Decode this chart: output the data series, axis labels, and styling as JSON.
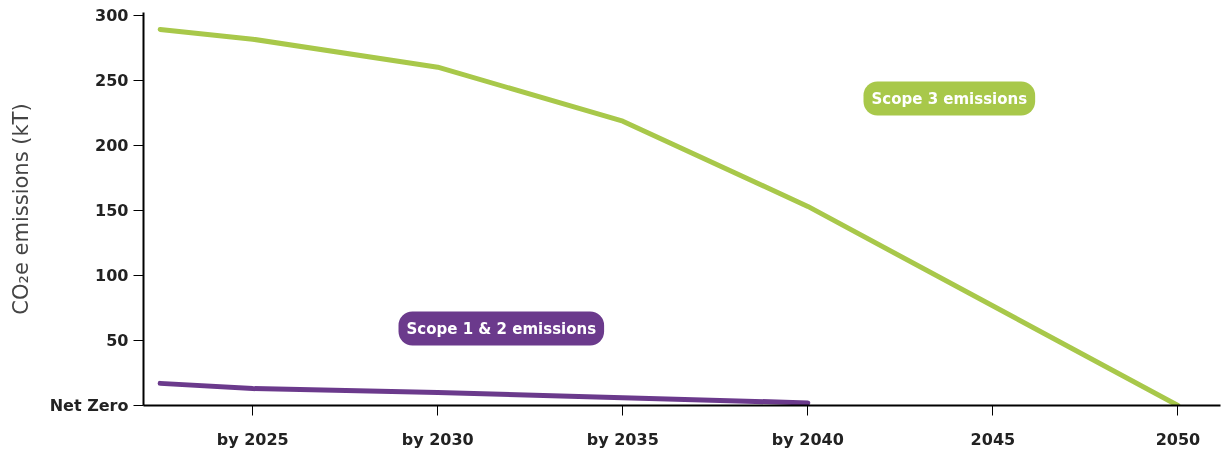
{
  "chart_data": {
    "type": "line",
    "ylabel": "CO₂e emissions (kT)",
    "x": [
      2022.5,
      2025,
      2030,
      2035,
      2040,
      2050
    ],
    "xlim": [
      2022.05,
      2051.15
    ],
    "xticks": [
      {
        "value": 2025,
        "label": "by 2025"
      },
      {
        "value": 2030,
        "label": "by 2030"
      },
      {
        "value": 2035,
        "label": "by 2035"
      },
      {
        "value": 2040,
        "label": "by 2040"
      },
      2045,
      2050
    ],
    "ylim": [
      0,
      302
    ],
    "yticks": [
      {
        "value": 0,
        "label": "Net Zero"
      },
      50,
      100,
      150,
      200,
      250,
      300
    ],
    "grid": false,
    "line_style": "solid",
    "series": [
      {
        "name": "Scope 3 emissions",
        "color": "#a8c84a",
        "values": [
          289,
          281.5,
          260,
          218.5,
          153,
          0
        ]
      },
      {
        "name": "Scope 1 & 2 emissions",
        "color": "#6b3a8c",
        "values": [
          17,
          13,
          10,
          6,
          2,
          null
        ]
      }
    ]
  }
}
